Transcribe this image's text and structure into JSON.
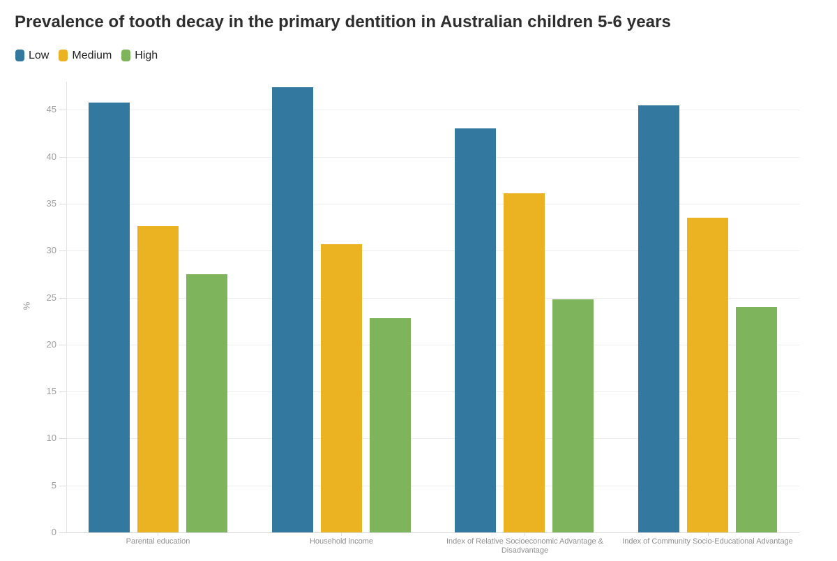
{
  "title": "Prevalence of tooth decay in the primary dentition in Australian children 5-6 years",
  "legend": {
    "items": [
      {
        "label": "Low",
        "color": "#33789e"
      },
      {
        "label": "Medium",
        "color": "#ebb222"
      },
      {
        "label": "High",
        "color": "#7eb55c"
      }
    ]
  },
  "chart_data": {
    "type": "bar",
    "title": "Prevalence of tooth decay in the primary dentition in Australian children 5-6 years",
    "categories": [
      "Parental education",
      "Household income",
      "Index of Relative Socioeconomic Advantage & Disadvantage",
      "Index of Community Socio-Educational Advantage"
    ],
    "series": [
      {
        "name": "Low",
        "color": "#33789e",
        "values": [
          45.8,
          47.4,
          43.0,
          45.5
        ]
      },
      {
        "name": "Medium",
        "color": "#ebb222",
        "values": [
          32.6,
          30.7,
          36.1,
          33.5
        ]
      },
      {
        "name": "High",
        "color": "#7eb55c",
        "values": [
          27.5,
          22.8,
          24.8,
          24.0
        ]
      }
    ],
    "xlabel": "",
    "ylabel": "%",
    "ylim": [
      0,
      48
    ],
    "yticks": [
      0,
      5,
      10,
      15,
      20,
      25,
      30,
      35,
      40,
      45
    ],
    "grid": true,
    "legend_position": "top-left"
  }
}
